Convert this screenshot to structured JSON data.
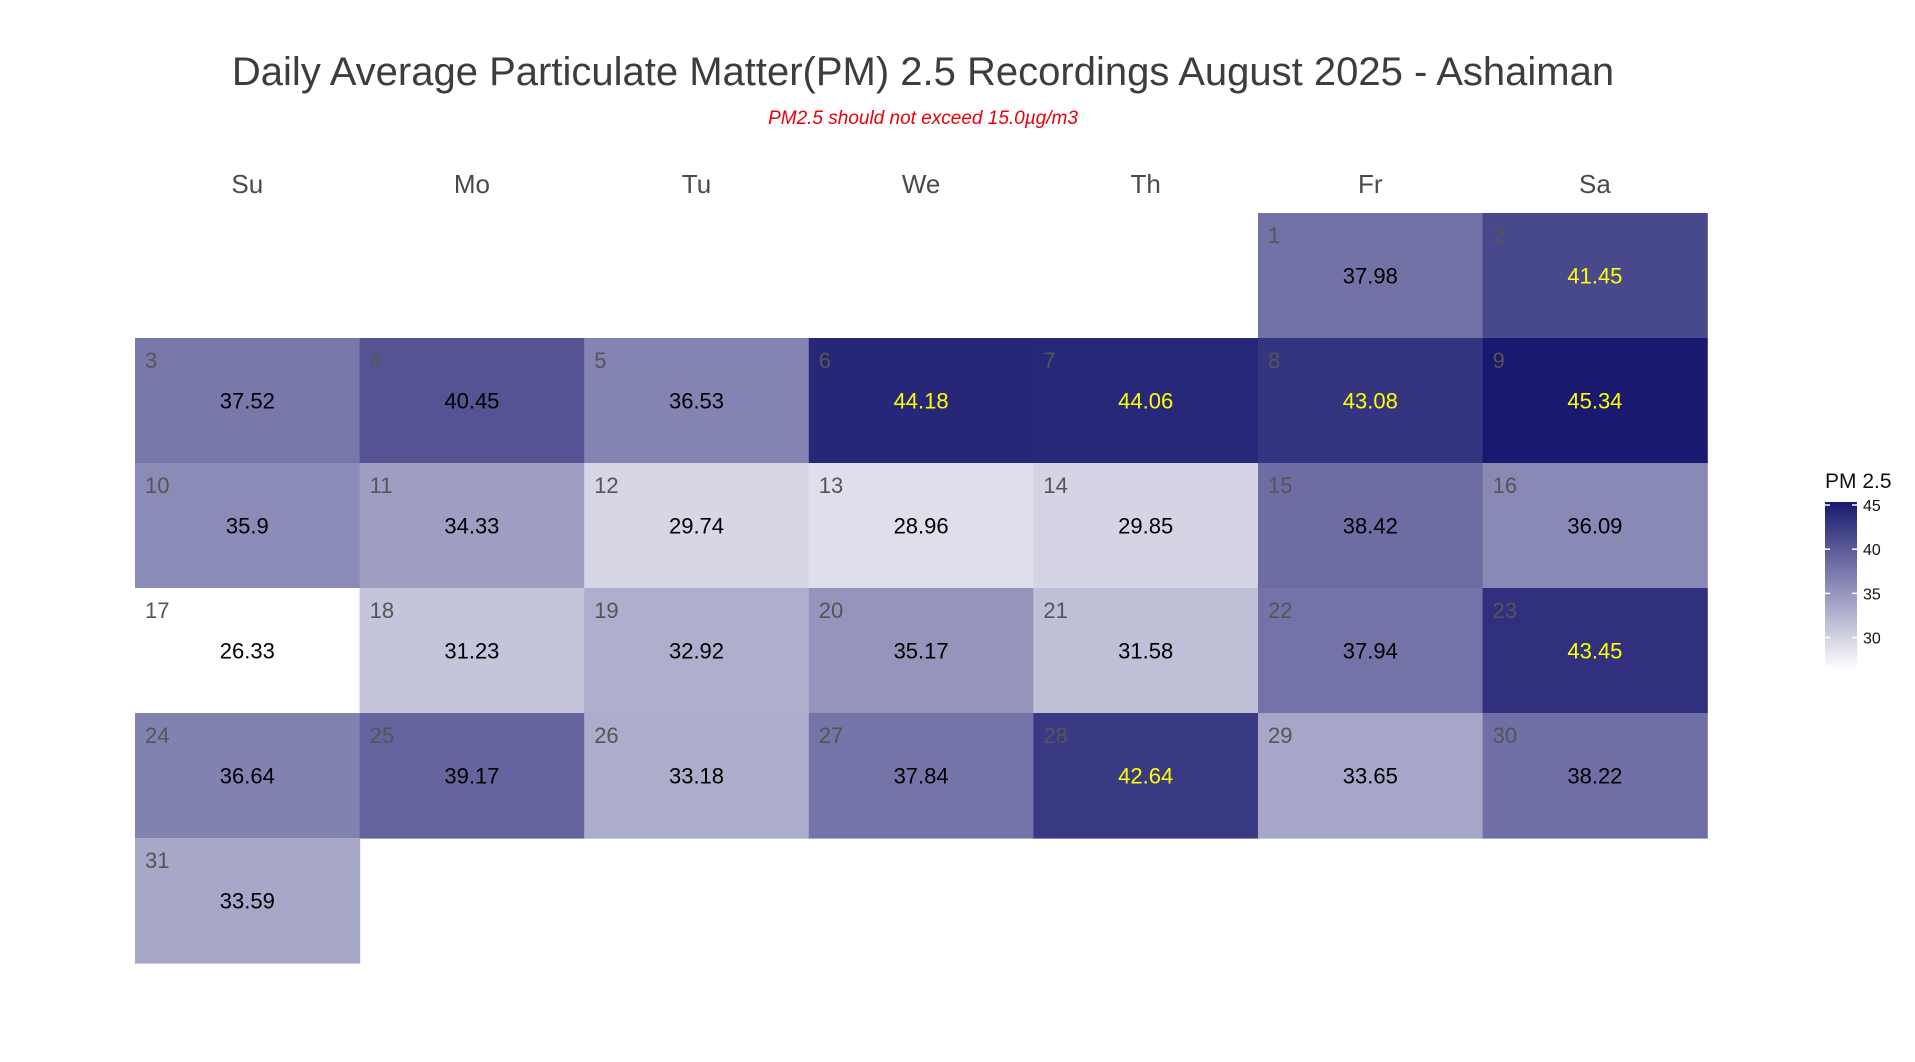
{
  "title": "Daily Average Particulate Matter(PM) 2.5 Recordings August 2025 -  Ashaiman",
  "subtitle": "PM2.5 should not exceed 15.0µg/m3",
  "chart_data": {
    "type": "heatmap",
    "layout": "calendar",
    "month": "August 2025",
    "weekdays": [
      "Su",
      "Mo",
      "Tu",
      "We",
      "Th",
      "Fr",
      "Sa"
    ],
    "first_weekday_index": 5,
    "days": [
      1,
      2,
      3,
      4,
      5,
      6,
      7,
      8,
      9,
      10,
      11,
      12,
      13,
      14,
      15,
      16,
      17,
      18,
      19,
      20,
      21,
      22,
      23,
      24,
      25,
      26,
      27,
      28,
      29,
      30,
      31
    ],
    "values": [
      37.98,
      41.45,
      37.52,
      40.45,
      36.53,
      44.18,
      44.06,
      43.08,
      45.34,
      35.9,
      34.33,
      29.74,
      28.96,
      29.85,
      38.42,
      36.09,
      26.33,
      31.23,
      32.92,
      35.17,
      31.58,
      37.94,
      43.45,
      36.64,
      39.17,
      33.18,
      37.84,
      42.64,
      33.65,
      38.22,
      33.59
    ],
    "value_labels": [
      "37.98",
      "41.45",
      "37.52",
      "40.45",
      "36.53",
      "44.18",
      "44.06",
      "43.08",
      "45.34",
      "35.9",
      "34.33",
      "29.74",
      "28.96",
      "29.85",
      "38.42",
      "36.09",
      "26.33",
      "31.23",
      "32.92",
      "35.17",
      "31.58",
      "37.94",
      "43.45",
      "36.64",
      "39.17",
      "33.18",
      "37.84",
      "42.64",
      "33.65",
      "38.22",
      "33.59"
    ],
    "color_scale": {
      "low": "#ffffff",
      "high": "#191970",
      "min": 26.33,
      "max": 45.34
    },
    "label_colors": {
      "normal": "#000000",
      "high": "#ffff00",
      "high_threshold": 41
    },
    "legend": {
      "title": "PM 2.5",
      "ticks": [
        45,
        40,
        35,
        30
      ],
      "placement": "right"
    }
  }
}
